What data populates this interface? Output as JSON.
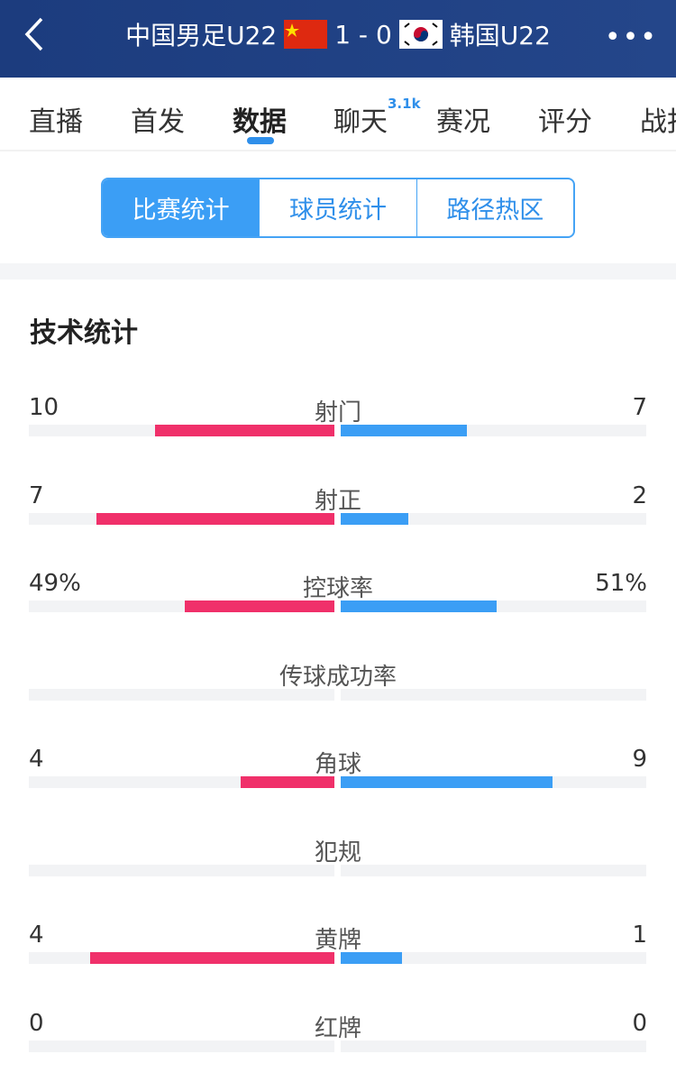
{
  "header": {
    "home": "中国男足U22",
    "score": "1 - 0",
    "away": "韩国U22",
    "back_icon": "chevron-left-icon",
    "more_icon": "more-dots-icon"
  },
  "tabs": [
    {
      "label": "直播"
    },
    {
      "label": "首发"
    },
    {
      "label": "数据",
      "active": true
    },
    {
      "label": "聊天",
      "badge": "3.1k"
    },
    {
      "label": "赛况"
    },
    {
      "label": "评分"
    },
    {
      "label": "战报"
    }
  ],
  "segments": [
    "比赛统计",
    "球员统计",
    "路径热区"
  ],
  "section_title": "技术统计",
  "colors": {
    "home": "#f0306a",
    "away": "#3b9ef5",
    "header": "#1f3f80"
  },
  "stats": [
    {
      "label": "射门",
      "home": "10",
      "away": "7",
      "h": 10,
      "a": 7
    },
    {
      "label": "射正",
      "home": "7",
      "away": "2",
      "h": 7,
      "a": 2
    },
    {
      "label": "控球率",
      "home": "49%",
      "away": "51%",
      "h": 49,
      "a": 51
    },
    {
      "label": "传球成功率",
      "home": "",
      "away": "",
      "h": 0,
      "a": 0
    },
    {
      "label": "角球",
      "home": "4",
      "away": "9",
      "h": 4,
      "a": 9
    },
    {
      "label": "犯规",
      "home": "",
      "away": "",
      "h": 0,
      "a": 0
    },
    {
      "label": "黄牌",
      "home": "4",
      "away": "1",
      "h": 4,
      "a": 1
    },
    {
      "label": "红牌",
      "home": "0",
      "away": "0",
      "h": 0,
      "a": 0
    }
  ]
}
